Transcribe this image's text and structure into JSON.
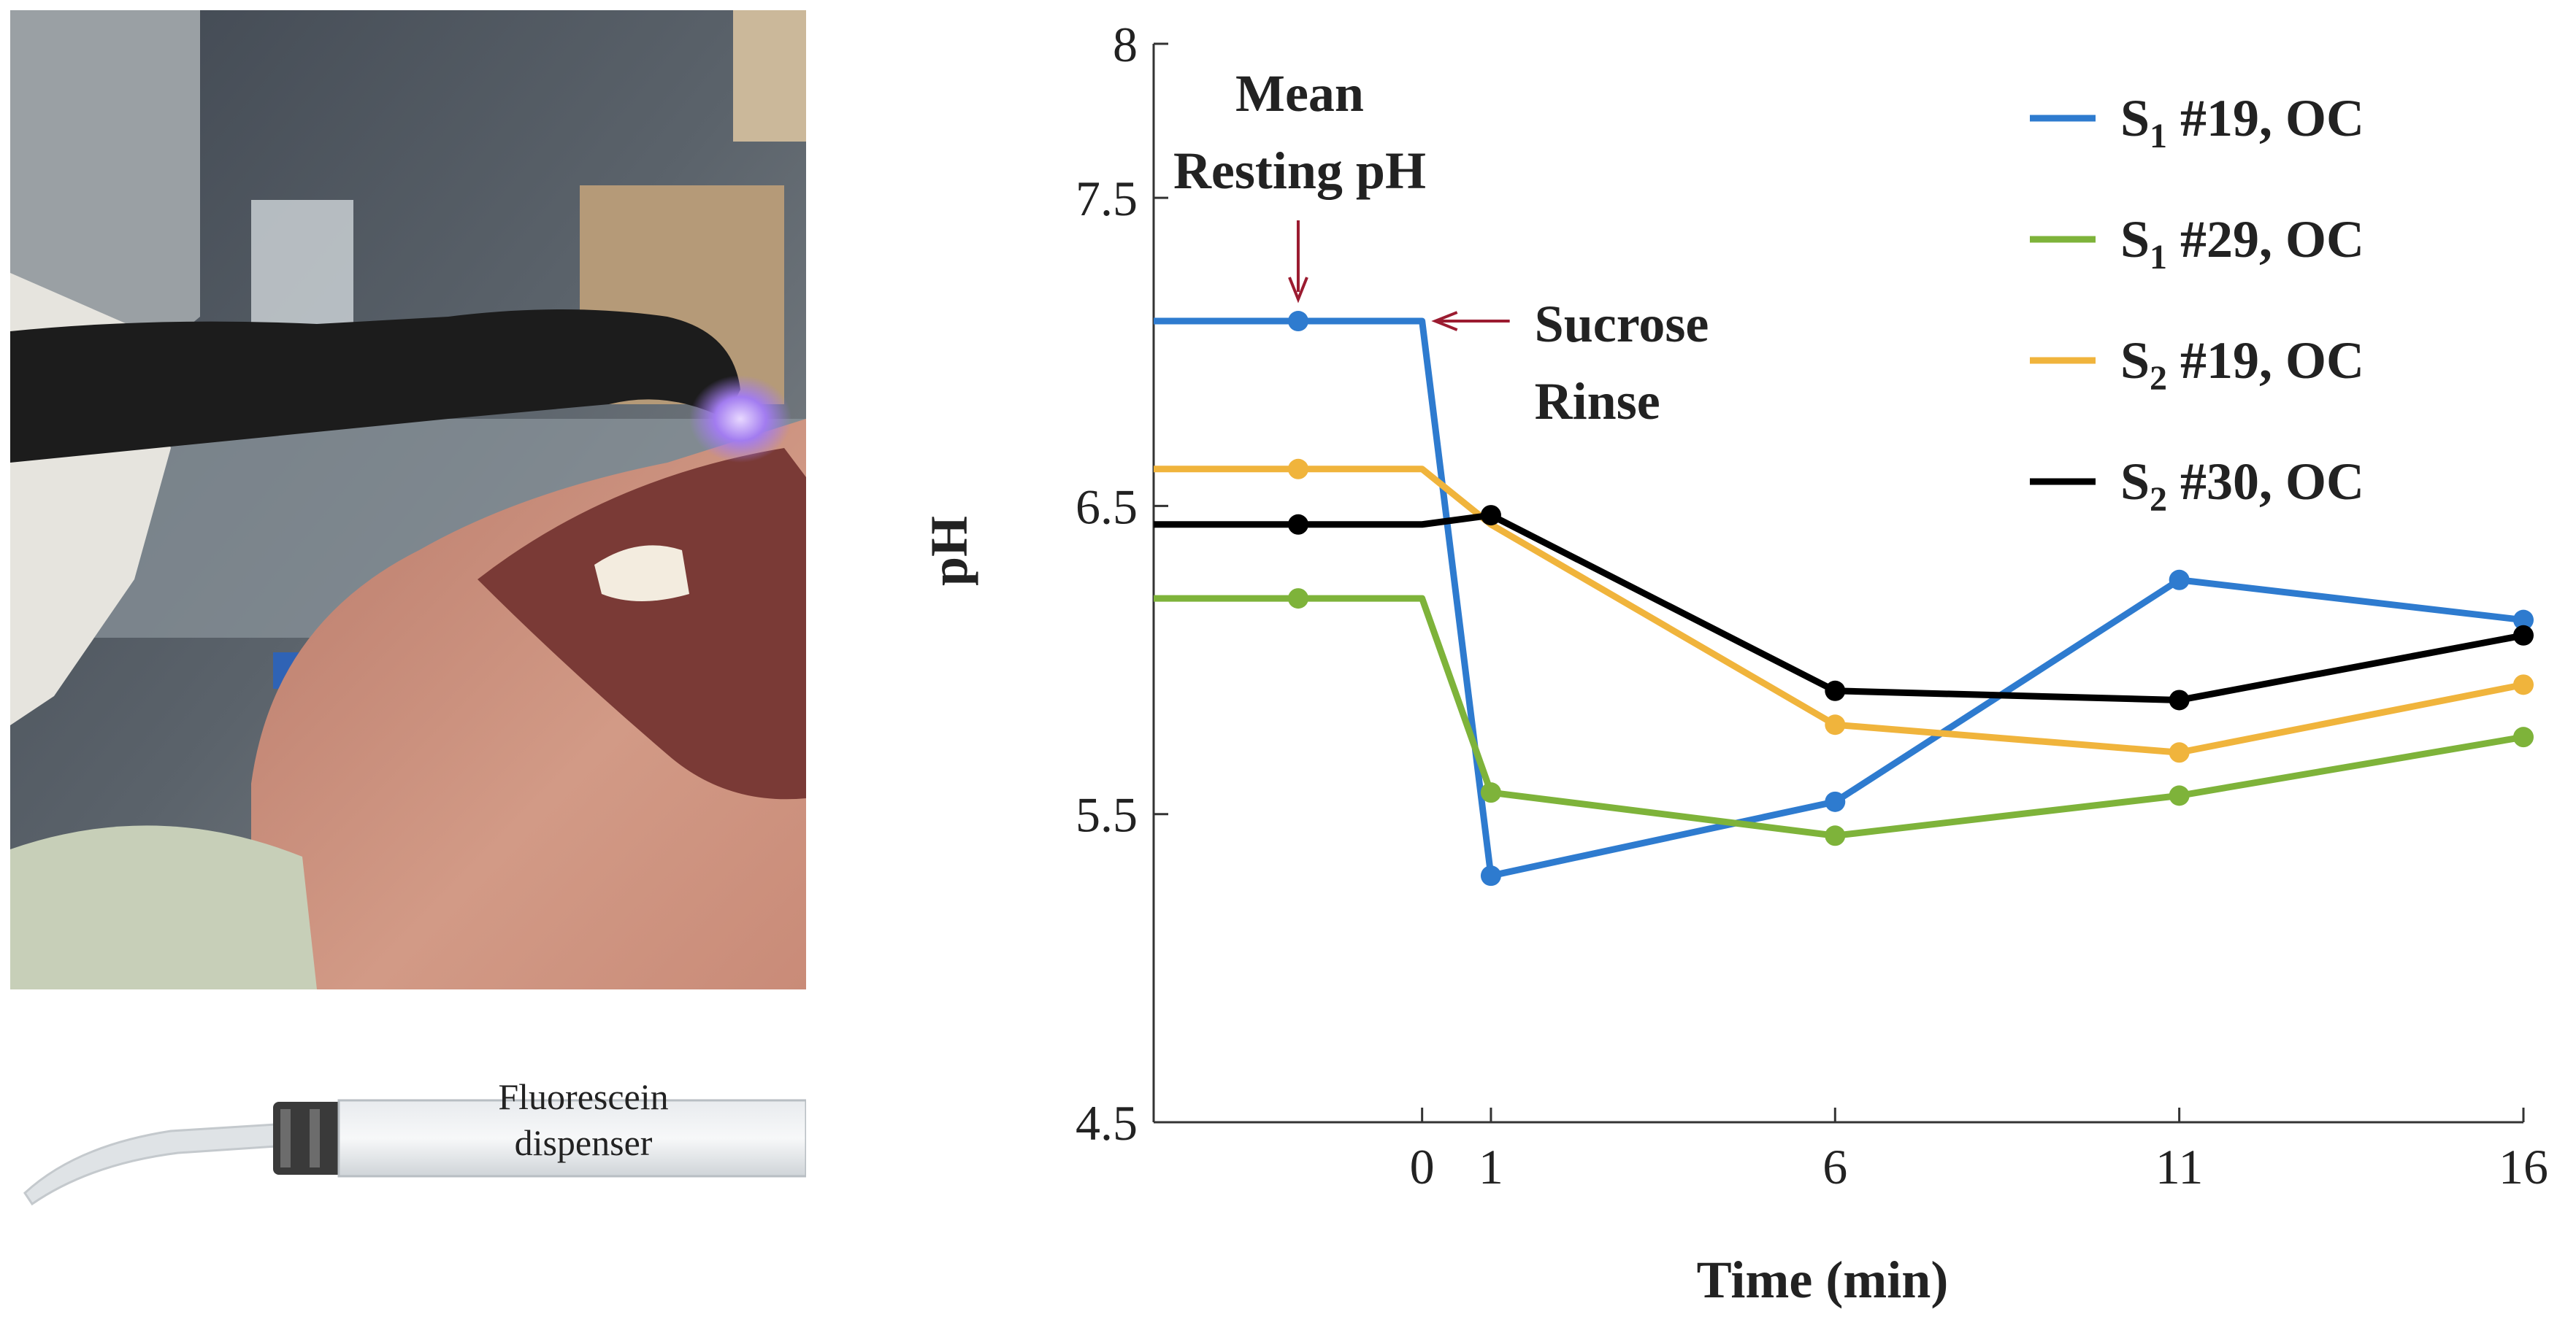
{
  "photo_panel": {
    "description_icon": "intraoral-photo-icon"
  },
  "syringe_panel": {
    "label_line1": "Fluorescein",
    "label_line2": "dispenser"
  },
  "chart_data": {
    "type": "line",
    "title": "",
    "xlabel": "Time (min)",
    "ylabel": "pH",
    "xlim": [
      -3.9,
      16
    ],
    "ylim": [
      4.5,
      8
    ],
    "x_ticks": [
      0,
      1,
      6,
      11,
      16
    ],
    "x_tick_labels": [
      "0",
      "1",
      "6",
      "11",
      "16"
    ],
    "y_ticks": [
      4.5,
      5.5,
      6.5,
      7.5,
      8
    ],
    "y_tick_labels": [
      "4.5",
      "5.5",
      "6.5",
      "7.5",
      "8"
    ],
    "legend_position": "top-right",
    "series": [
      {
        "name": "S1 #19, OC",
        "label_main": "S",
        "label_sub": "1",
        "label_rest": " #19, OC",
        "color": "#2e7bcf",
        "line_x": [
          -3.9,
          0,
          1,
          6,
          11,
          16
        ],
        "line_y": [
          7.1,
          7.1,
          5.3,
          5.54,
          6.26,
          6.13
        ],
        "markers_x": [
          -1.8,
          1,
          6,
          11,
          16
        ],
        "markers_y": [
          7.1,
          5.3,
          5.54,
          6.26,
          6.13
        ]
      },
      {
        "name": "S1 #29, OC",
        "label_main": "S",
        "label_sub": "1",
        "label_rest": " #29, OC",
        "color": "#7eb33a",
        "line_x": [
          -3.9,
          0,
          1,
          6,
          11,
          16
        ],
        "line_y": [
          6.2,
          6.2,
          5.57,
          5.43,
          5.56,
          5.75
        ],
        "markers_x": [
          -1.8,
          1,
          6,
          11,
          16
        ],
        "markers_y": [
          6.2,
          5.57,
          5.43,
          5.56,
          5.75
        ]
      },
      {
        "name": "S2 #19, OC",
        "label_main": "S",
        "label_sub": "2",
        "label_rest": " #19, OC",
        "color": "#f0b43c",
        "line_x": [
          -3.9,
          0,
          1,
          6,
          11,
          16
        ],
        "line_y": [
          6.62,
          6.62,
          6.44,
          5.79,
          5.7,
          5.92
        ],
        "markers_x": [
          -1.8,
          6,
          11,
          16
        ],
        "markers_y": [
          6.62,
          5.79,
          5.7,
          5.92
        ]
      },
      {
        "name": "S2 #30, OC",
        "label_main": "S",
        "label_sub": "2",
        "label_rest": " #30, OC",
        "color": "#000000",
        "line_x": [
          -3.9,
          0,
          1,
          6,
          11,
          16
        ],
        "line_y": [
          6.44,
          6.44,
          6.47,
          5.9,
          5.87,
          6.08
        ],
        "markers_x": [
          -1.8,
          1,
          6,
          11,
          16
        ],
        "markers_y": [
          6.44,
          6.47,
          5.9,
          5.87,
          6.08
        ]
      }
    ],
    "annotations": [
      {
        "id": "mean-resting",
        "line1": "Mean",
        "line2": "Resting pH",
        "arrow_to": [
          -1.8,
          7.1
        ],
        "direction": "down"
      },
      {
        "id": "sucrose-rinse",
        "line1": "Sucrose",
        "line2": "Rinse",
        "arrow_to": [
          0,
          7.1
        ],
        "direction": "left"
      }
    ],
    "annotation_color": "#9b1b30"
  }
}
